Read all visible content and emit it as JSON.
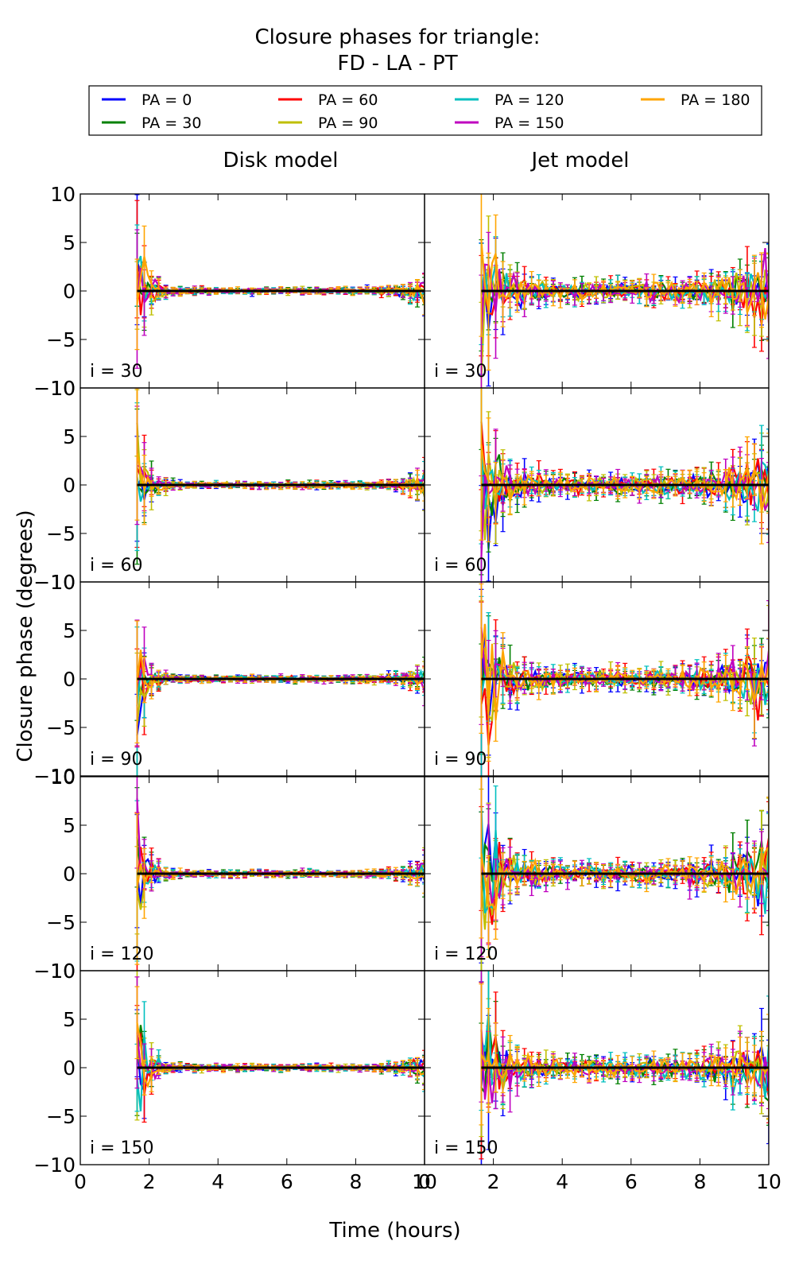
{
  "figure": {
    "title_line1": "Closure phases for triangle:",
    "title_line2": "FD - LA - PT",
    "ylabel": "Closure phase (degrees)",
    "xlabel": "Time (hours)",
    "column_titles": [
      "Disk model",
      "Jet model"
    ]
  },
  "legend": [
    {
      "label": "PA = 0",
      "color": "#0000ff"
    },
    {
      "label": "PA = 30",
      "color": "#008000"
    },
    {
      "label": "PA = 60",
      "color": "#ff0000"
    },
    {
      "label": "PA = 90",
      "color": "#bfbf00"
    },
    {
      "label": "PA = 120",
      "color": "#00bfbf"
    },
    {
      "label": "PA = 150",
      "color": "#bf00bf"
    },
    {
      "label": "PA = 180",
      "color": "#ffa500"
    }
  ],
  "chart_data": {
    "type": "line",
    "layout": "5 rows x 2 columns of subplots with shared axes",
    "xlim": [
      0,
      10
    ],
    "ylim": [
      -10,
      10
    ],
    "xticks": [
      0,
      2,
      4,
      6,
      8,
      10
    ],
    "yticks": [
      -10,
      -5,
      0,
      5,
      10
    ],
    "row_labels": [
      "i = 30",
      "i = 60",
      "i = 90",
      "i = 120",
      "i = 150"
    ],
    "series_names": [
      "PA = 0",
      "PA = 30",
      "PA = 60",
      "PA = 90",
      "PA = 120",
      "PA = 150",
      "PA = 180"
    ],
    "reference_line": {
      "y": 0,
      "x_start": 1.65,
      "x_end": 10,
      "color": "#000000"
    },
    "time_range": [
      1.65,
      10
    ],
    "error_bars": true,
    "panel_envelope": {
      "description": "approximate spread of closure phases (degrees) around zero",
      "Disk model": {
        "spread_at_start": 8,
        "spread_mid": 0.3,
        "spread_at_end": 1.5
      },
      "Jet model": {
        "spread_at_start": 10,
        "spread_mid": 1.0,
        "spread_at_end": 4.5
      }
    }
  }
}
